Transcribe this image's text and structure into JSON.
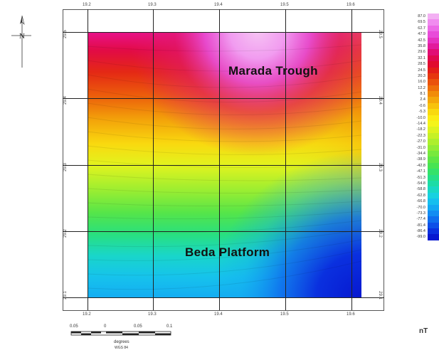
{
  "map": {
    "labels": {
      "north_area": "Marada  Trough",
      "south_area": "Beda  Platform"
    },
    "lon_ticks_top": [
      "19.2",
      "19.3",
      "19.4",
      "19.5",
      "19.6"
    ],
    "lon_ticks_bottom": [
      "19.2",
      "19.3",
      "19.4",
      "19.5",
      "19.6"
    ],
    "lat_ticks_left": [
      "29.5",
      "29.4",
      "29.3",
      "29.2",
      "29.1"
    ],
    "lat_ticks_right": [
      "29.5",
      "29.4",
      "29.3",
      "29.2",
      "29.1"
    ]
  },
  "legend": {
    "unit": "nT",
    "values": [
      "87.0",
      "69.5",
      "62.7",
      "47.9",
      "42.5",
      "35.8",
      "29.6",
      "32.1",
      "28.5",
      "24.5",
      "20.3",
      "16.0",
      "12.2",
      "8.1",
      "2.4",
      "-0.6",
      "-5.3",
      "-10.0",
      "-14.4",
      "-18.2",
      "-22.3",
      "-27.0",
      "-31.0",
      "-34.4",
      "-38.9",
      "-42.8",
      "-47.1",
      "-51.3",
      "-54.8",
      "-58.8",
      "-62.8",
      "-66.8",
      "-70.0",
      "-73.3",
      "-77.4",
      "-81.4",
      "-86.4",
      "-99.0"
    ],
    "colors": [
      "#f3b0f3",
      "#f08cef",
      "#ec6ae6",
      "#e84bd9",
      "#e532c0",
      "#e21b9c",
      "#e10d74",
      "#e0084d",
      "#e10b2f",
      "#e31e18",
      "#e6360e",
      "#ea520c",
      "#ee6f0a",
      "#f18c09",
      "#f4a70a",
      "#f7c20c",
      "#f9d90f",
      "#fbec14",
      "#f4f41a",
      "#def31f",
      "#c6f126",
      "#adef2d",
      "#92ec35",
      "#77e93d",
      "#5ee645",
      "#47e452",
      "#34e26a",
      "#26df87",
      "#1ddca6",
      "#19d8c4",
      "#18d1e0",
      "#16bfee",
      "#14a8f2",
      "#128cf2",
      "#0f6eee",
      "#0d4fe8",
      "#0a30df",
      "#0718d0"
    ]
  },
  "scalebar": {
    "ticks": [
      "0.05",
      "0",
      "0.05",
      "0.1"
    ],
    "unit": "degrees",
    "datum": "WGS 84"
  },
  "north_arrow": {
    "letter": "N"
  }
}
